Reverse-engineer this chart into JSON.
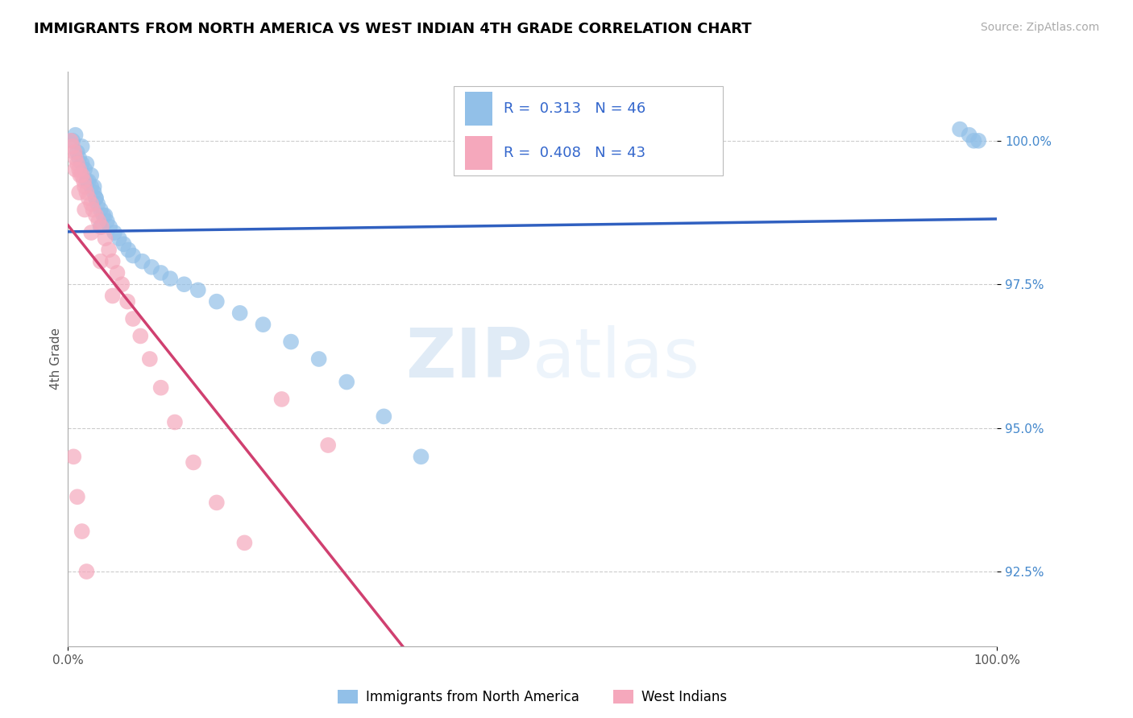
{
  "title": "IMMIGRANTS FROM NORTH AMERICA VS WEST INDIAN 4TH GRADE CORRELATION CHART",
  "source": "Source: ZipAtlas.com",
  "ylabel": "4th Grade",
  "xlim": [
    0.0,
    1.0
  ],
  "ylim": [
    91.2,
    101.2
  ],
  "yticks": [
    92.5,
    95.0,
    97.5,
    100.0
  ],
  "ytick_labels": [
    "92.5%",
    "95.0%",
    "97.5%",
    "100.0%"
  ],
  "xtick_labels": [
    "0.0%",
    "100.0%"
  ],
  "legend_label1": "Immigrants from North America",
  "legend_label2": "West Indians",
  "R1": 0.313,
  "N1": 46,
  "R2": 0.408,
  "N2": 43,
  "blue_color": "#92C0E8",
  "pink_color": "#F5A8BC",
  "blue_line_color": "#3060C0",
  "pink_line_color": "#D04070",
  "blue_x": [
    0.005,
    0.01,
    0.012,
    0.015,
    0.018,
    0.02,
    0.022,
    0.025,
    0.028,
    0.03,
    0.032,
    0.035,
    0.038,
    0.04,
    0.042,
    0.045,
    0.05,
    0.055,
    0.06,
    0.065,
    0.07,
    0.08,
    0.09,
    0.1,
    0.11,
    0.125,
    0.14,
    0.16,
    0.185,
    0.21,
    0.24,
    0.27,
    0.3,
    0.34,
    0.38,
    0.025,
    0.03,
    0.035,
    0.008,
    0.015,
    0.02,
    0.028,
    0.96,
    0.97,
    0.975,
    0.98
  ],
  "blue_y": [
    100.0,
    99.8,
    99.7,
    99.6,
    99.5,
    99.3,
    99.3,
    99.2,
    99.1,
    99.0,
    98.9,
    98.8,
    98.7,
    98.7,
    98.6,
    98.5,
    98.4,
    98.3,
    98.2,
    98.1,
    98.0,
    97.9,
    97.8,
    97.7,
    97.6,
    97.5,
    97.4,
    97.2,
    97.0,
    96.8,
    96.5,
    96.2,
    95.8,
    95.2,
    94.5,
    99.4,
    99.0,
    98.5,
    100.1,
    99.9,
    99.6,
    99.2,
    100.2,
    100.1,
    100.0,
    100.0
  ],
  "pink_x": [
    0.003,
    0.005,
    0.007,
    0.008,
    0.01,
    0.012,
    0.013,
    0.015,
    0.017,
    0.018,
    0.02,
    0.022,
    0.025,
    0.027,
    0.03,
    0.033,
    0.036,
    0.04,
    0.044,
    0.048,
    0.053,
    0.058,
    0.064,
    0.07,
    0.078,
    0.088,
    0.1,
    0.115,
    0.135,
    0.16,
    0.19,
    0.23,
    0.28,
    0.008,
    0.012,
    0.018,
    0.025,
    0.035,
    0.048,
    0.006,
    0.01,
    0.015,
    0.02
  ],
  "pink_y": [
    100.0,
    99.9,
    99.8,
    99.7,
    99.6,
    99.5,
    99.4,
    99.4,
    99.3,
    99.2,
    99.1,
    99.0,
    98.9,
    98.8,
    98.7,
    98.6,
    98.5,
    98.3,
    98.1,
    97.9,
    97.7,
    97.5,
    97.2,
    96.9,
    96.6,
    96.2,
    95.7,
    95.1,
    94.4,
    93.7,
    93.0,
    95.5,
    94.7,
    99.5,
    99.1,
    98.8,
    98.4,
    97.9,
    97.3,
    94.5,
    93.8,
    93.2,
    92.5
  ]
}
